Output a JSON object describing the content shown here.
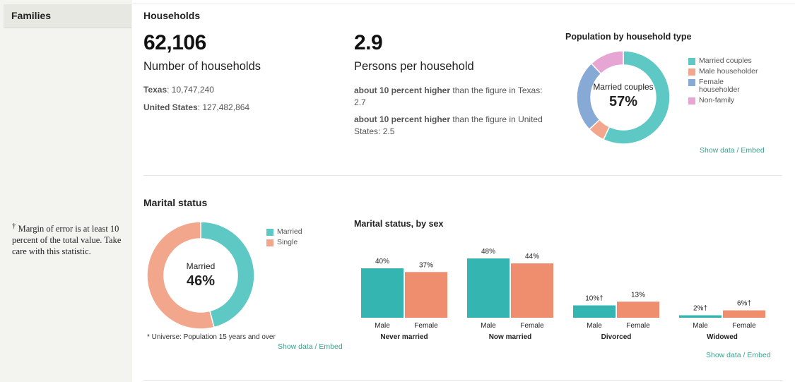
{
  "sidebar": {
    "tab_label": "Families",
    "footnote_mark": "†",
    "footnote_text": "Margin of error is at least 10 percent of the total value. Take care with this statistic."
  },
  "households": {
    "title": "Households",
    "count_value": "62,106",
    "count_label": "Number of households",
    "texas_label": "Texas",
    "texas_value": ": 10,747,240",
    "us_label": "United States",
    "us_value": ": 127,482,864",
    "pph_value": "2.9",
    "pph_label": "Persons per household",
    "cmp1_bold": "about 10 percent higher",
    "cmp1_rest": " than the figure in Texas: 2.7",
    "cmp2_bold": "about 10 percent higher",
    "cmp2_rest": " than the figure in United States: 2.5"
  },
  "links": {
    "show_data": "Show data",
    "sep": " / ",
    "embed": "Embed"
  },
  "marital": {
    "title": "Marital status",
    "universe_note": "* Universe: Population 15 years and over"
  },
  "colors": {
    "teal": "#5ec8c4",
    "salmon": "#f2a68b",
    "blue": "#87a9d6",
    "pink": "#e7a5d3",
    "bar_teal": "#35b5b1",
    "bar_salmon": "#ef8d6f"
  },
  "chart_data": [
    {
      "type": "pie",
      "title": "Population by household type",
      "center_label": "Married couples",
      "center_value": "57%",
      "categories": [
        "Married couples",
        "Male householder",
        "Female householder",
        "Non-family"
      ],
      "values": [
        57,
        6,
        25,
        12
      ],
      "colors": [
        "#5ec8c4",
        "#f2a68b",
        "#87a9d6",
        "#e7a5d3"
      ],
      "legend": "right"
    },
    {
      "type": "pie",
      "title": "",
      "center_label": "Married",
      "center_value": "46%",
      "categories": [
        "Married",
        "Single"
      ],
      "values": [
        46,
        54
      ],
      "colors": [
        "#5ec8c4",
        "#f2a68b"
      ],
      "legend": "right"
    },
    {
      "type": "bar",
      "title": "Marital status, by sex",
      "groups": [
        "Never married",
        "Now married",
        "Divorced",
        "Widowed"
      ],
      "bar_labels": [
        "Male",
        "Female"
      ],
      "series": [
        {
          "name": "Male",
          "values": [
            40,
            48,
            10,
            2
          ],
          "labels": [
            "40%",
            "48%",
            "10%†",
            "2%†"
          ]
        },
        {
          "name": "Female",
          "values": [
            37,
            44,
            13,
            6
          ],
          "labels": [
            "37%",
            "44%",
            "13%",
            "6%†"
          ]
        }
      ],
      "ylim": [
        0,
        50
      ]
    }
  ]
}
